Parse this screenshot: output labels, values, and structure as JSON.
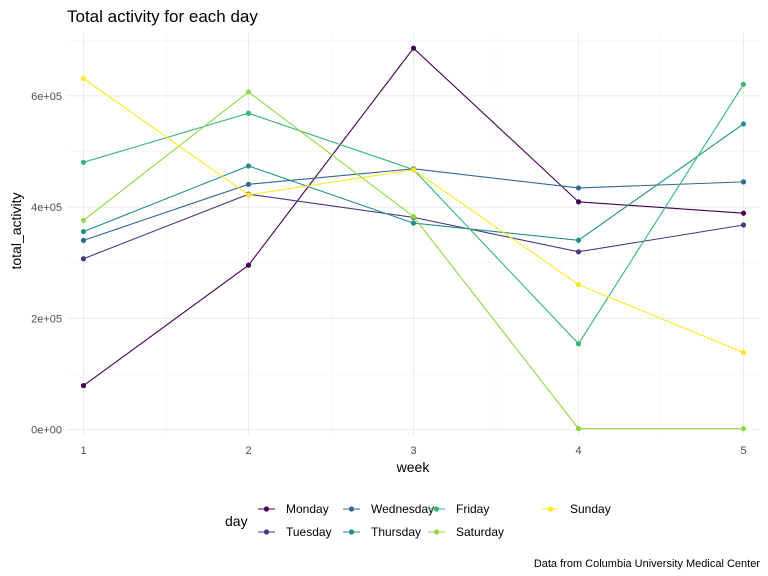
{
  "chart_data": {
    "type": "line",
    "title": "Total activity for each day",
    "xlabel": "week",
    "ylabel": "total_activity",
    "caption": "Data from Columbia University Medical Center",
    "x": [
      1,
      2,
      3,
      4,
      5
    ],
    "x_ticks": [
      "1",
      "2",
      "3",
      "4",
      "5"
    ],
    "xlim": [
      0.9,
      5.1
    ],
    "ylim": [
      -10000,
      715000
    ],
    "y_ticks": [
      {
        "value": 0,
        "label": "0e+00"
      },
      {
        "value": 200000,
        "label": "2e+05"
      },
      {
        "value": 400000,
        "label": "4e+05"
      },
      {
        "value": 600000,
        "label": "6e+05"
      }
    ],
    "grid": true,
    "legend": {
      "title": "day",
      "placement": "bottom"
    },
    "series": [
      {
        "name": "Monday",
        "color": "#440154",
        "values": [
          78828,
          295431,
          685910,
          409450,
          389080
        ]
      },
      {
        "name": "Tuesday",
        "color": "#443A83",
        "values": [
          307094,
          423245,
          381507,
          319568,
          367824
        ]
      },
      {
        "name": "Wednesday",
        "color": "#31688E",
        "values": [
          340115,
          440962,
          468869,
          434460,
          445366
        ]
      },
      {
        "name": "Thursday",
        "color": "#21908C",
        "values": [
          355924,
          474048,
          371230,
          340291,
          549658
        ]
      },
      {
        "name": "Friday",
        "color": "#35B779",
        "values": [
          480543,
          568839,
          467420,
          154049,
          620860
        ]
      },
      {
        "name": "Saturday",
        "color": "#8FD744",
        "values": [
          376254,
          607175,
          382928,
          1440,
          1440
        ]
      },
      {
        "name": "Sunday",
        "color": "#FDE725",
        "values": [
          631105,
          422018,
          467052,
          260617,
          138421
        ]
      }
    ]
  }
}
